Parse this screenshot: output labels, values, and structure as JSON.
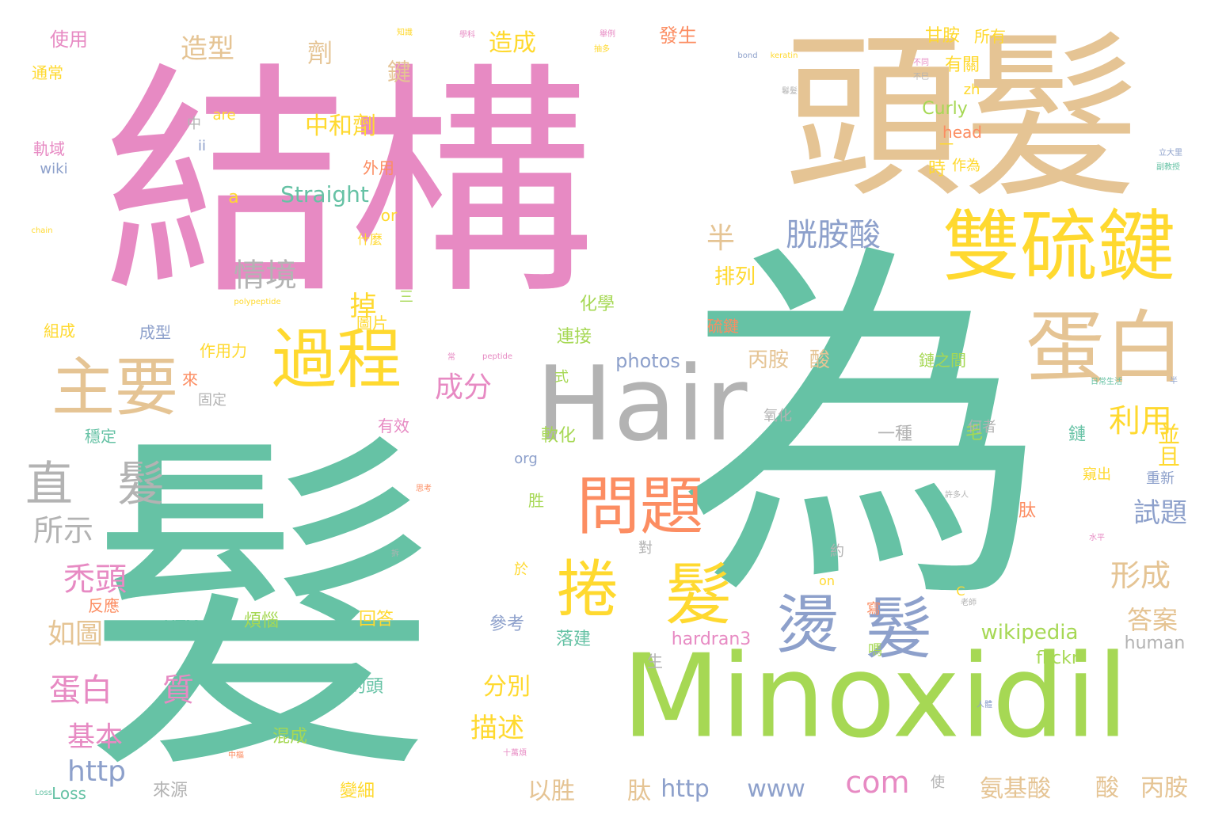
{
  "palette": {
    "green": "#66c2a5",
    "pink": "#e78ac3",
    "tan": "#e5c494",
    "yellow": "#ffd92f",
    "lime": "#a6d854",
    "orange": "#fc8d62",
    "blue": "#8da0cb",
    "gray": "#b3b3b3"
  },
  "words": [
    "髮",
    "為",
    "結構",
    "頭髮",
    "Hair",
    "Minoxidil",
    "雙硫鍵",
    "蛋白",
    "過程",
    "主要",
    "問題",
    "捲",
    "髮",
    "燙",
    "髮",
    "直",
    "髮",
    "胱胺酸",
    "情境",
    "所示",
    "禿頭",
    "蛋白",
    "質",
    "如圖",
    "基本",
    "http",
    "com",
    "http",
    "www",
    "造型",
    "劑",
    "鍵",
    "中和劑",
    "半",
    "成分",
    "利用",
    "並且",
    "試題",
    "形成",
    "答案",
    "wikipedia",
    "hardran3",
    "flickr",
    "human",
    "Straight",
    "Curly",
    "head",
    "photos",
    "丙胺",
    "酸",
    "氨基酸",
    "酸",
    "丙胺",
    "以胜",
    "肽",
    "描述",
    "分別",
    "掉",
    "排列",
    "造成",
    "發生",
    "甘胺",
    "所有",
    "有關",
    "作為",
    "使用",
    "通常",
    "軌域",
    "wiki",
    "組成",
    "成型",
    "作用力",
    "來",
    "固定",
    "穩定",
    "反應",
    "HTM",
    "Loss",
    "來源",
    "變細",
    "混成",
    "的頭",
    "回答",
    "參考",
    "落建",
    "煩惱",
    "連接",
    "化學",
    "硫鍵",
    "圖片",
    "外用",
    "時",
    "一種",
    "毛",
    "鏈",
    "軟化",
    "有效",
    "org",
    "or",
    "a",
    "ii",
    "are",
    "中",
    "三",
    "生",
    "胜",
    "肽",
    "約",
    "對",
    "於",
    "寫",
    "嗎",
    "C",
    "on",
    "使",
    "zh",
    "一",
    "氧化",
    "何者",
    "鏈之間",
    "重新",
    "窺出",
    "式",
    "什麼",
    "Loss",
    "bond",
    "keratin",
    "peptide",
    "polypeptide",
    "chain",
    "老師",
    "半",
    "立大里",
    "日常生活",
    "副教授",
    "人體",
    "許多人",
    "水平",
    "十萬煩",
    "中樞",
    "常",
    "思考",
    "拆",
    "鬈髮",
    "不巳",
    "不同",
    "知識",
    "學科",
    "舉例",
    "抽多"
  ]
}
